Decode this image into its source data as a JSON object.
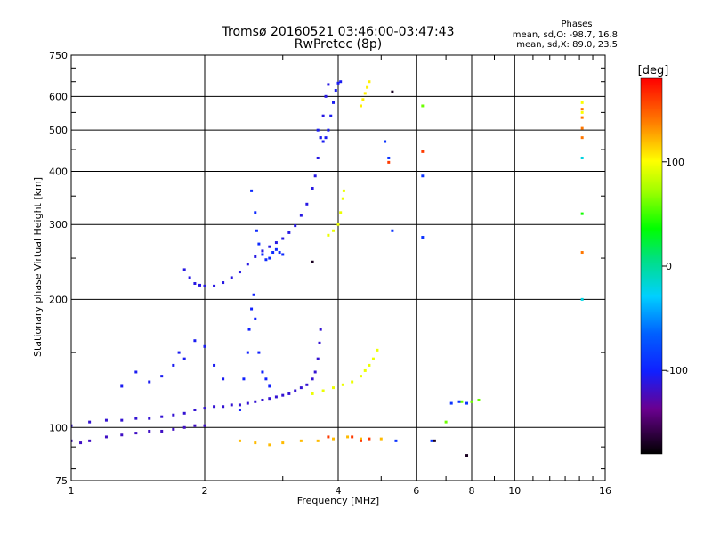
{
  "chart_data": {
    "type": "scatter",
    "title": "Tromsø 20160521 03:46:00-03:47:43",
    "subtitle": "RwPretec (8p)",
    "xlabel": "Frequency [MHz]",
    "ylabel": "Stationary phase Virtual Height [km]",
    "x_scale": "log",
    "y_scale": "log",
    "xlim": [
      1,
      16
    ],
    "ylim": [
      75,
      750
    ],
    "x_ticks": [
      1,
      2,
      4,
      6,
      8,
      10,
      16
    ],
    "y_ticks": [
      75,
      100,
      200,
      300,
      400,
      500,
      600,
      750
    ],
    "x_tick_labels": [
      "1",
      "2",
      "4",
      "6",
      "8",
      "10",
      "16"
    ],
    "y_tick_labels": [
      "75",
      "100",
      "200",
      "300",
      "400",
      "500",
      "600",
      "750"
    ],
    "grid": true,
    "phase_stats": {
      "heading": "Phases",
      "line_o": "mean, sd,O: -98.7, 16.8",
      "line_x": "mean, sd,X:  89.0, 23.5"
    },
    "colorbar": {
      "label": "[deg]",
      "range": [
        -180,
        180
      ],
      "ticks": [
        100,
        0,
        -100
      ],
      "tick_labels": [
        "100",
        "0",
        "-100"
      ]
    },
    "traces": [
      {
        "phase": -110,
        "points": [
          [
            1.8,
            235
          ],
          [
            1.85,
            225
          ],
          [
            1.9,
            218
          ],
          [
            1.95,
            216
          ],
          [
            2.0,
            215
          ],
          [
            2.1,
            215
          ],
          [
            2.2,
            219
          ],
          [
            2.3,
            225
          ],
          [
            2.4,
            232
          ],
          [
            2.5,
            242
          ],
          [
            2.6,
            252
          ],
          [
            2.7,
            260
          ],
          [
            2.8,
            266
          ],
          [
            2.9,
            272
          ],
          [
            3.0,
            278
          ],
          [
            3.1,
            287
          ],
          [
            3.2,
            298
          ],
          [
            3.3,
            315
          ],
          [
            3.4,
            335
          ],
          [
            3.5,
            365
          ],
          [
            3.55,
            390
          ],
          [
            3.6,
            430
          ],
          [
            3.65,
            480
          ],
          [
            3.7,
            540
          ],
          [
            3.75,
            600
          ],
          [
            3.8,
            640
          ]
        ]
      },
      {
        "phase": -95,
        "points": [
          [
            2.55,
            360
          ],
          [
            2.6,
            320
          ],
          [
            2.62,
            290
          ],
          [
            2.65,
            270
          ],
          [
            2.7,
            255
          ],
          [
            2.75,
            248
          ],
          [
            2.8,
            250
          ],
          [
            2.85,
            258
          ],
          [
            2.9,
            262
          ],
          [
            2.95,
            258
          ],
          [
            3.0,
            255
          ]
        ]
      },
      {
        "phase": -105,
        "points": [
          [
            3.6,
            500
          ],
          [
            3.65,
            480
          ],
          [
            3.7,
            470
          ],
          [
            3.75,
            480
          ],
          [
            3.8,
            500
          ],
          [
            3.85,
            540
          ],
          [
            3.9,
            580
          ],
          [
            3.95,
            620
          ],
          [
            4.0,
            645
          ],
          [
            4.05,
            650
          ]
        ]
      },
      {
        "phase": 95,
        "points": [
          [
            3.8,
            283
          ],
          [
            3.9,
            290
          ],
          [
            4.0,
            300
          ],
          [
            4.05,
            320
          ],
          [
            4.1,
            345
          ],
          [
            4.12,
            360
          ]
        ]
      },
      {
        "phase": 105,
        "points": [
          [
            4.5,
            570
          ],
          [
            4.55,
            590
          ],
          [
            4.6,
            610
          ],
          [
            4.65,
            630
          ],
          [
            4.7,
            650
          ]
        ]
      },
      {
        "phase": -120,
        "points": [
          [
            1.0,
            93
          ],
          [
            1.05,
            92
          ],
          [
            1.1,
            93
          ],
          [
            1.2,
            95
          ],
          [
            1.3,
            96
          ],
          [
            1.4,
            97
          ],
          [
            1.5,
            98
          ],
          [
            1.6,
            98
          ],
          [
            1.7,
            99
          ],
          [
            1.8,
            100
          ],
          [
            1.9,
            101
          ],
          [
            2.0,
            101
          ]
        ]
      },
      {
        "phase": -115,
        "points": [
          [
            1.0,
            101
          ],
          [
            1.1,
            103
          ],
          [
            1.2,
            104
          ],
          [
            1.3,
            104
          ],
          [
            1.4,
            105
          ],
          [
            1.5,
            105
          ],
          [
            1.6,
            106
          ],
          [
            1.7,
            107
          ],
          [
            1.8,
            108
          ],
          [
            1.9,
            110
          ],
          [
            2.0,
            111
          ],
          [
            2.1,
            112
          ],
          [
            2.2,
            112
          ],
          [
            2.3,
            113
          ],
          [
            2.4,
            113
          ],
          [
            2.5,
            114
          ],
          [
            2.6,
            115
          ],
          [
            2.7,
            116
          ],
          [
            2.8,
            117
          ],
          [
            2.9,
            118
          ],
          [
            3.0,
            119
          ],
          [
            3.1,
            120
          ],
          [
            3.2,
            122
          ],
          [
            3.3,
            124
          ],
          [
            3.4,
            126
          ],
          [
            3.5,
            130
          ],
          [
            3.55,
            135
          ],
          [
            3.6,
            145
          ],
          [
            3.63,
            158
          ],
          [
            3.65,
            170
          ]
        ]
      },
      {
        "phase": -100,
        "points": [
          [
            2.4,
            110
          ],
          [
            2.45,
            130
          ],
          [
            2.5,
            150
          ],
          [
            2.52,
            170
          ],
          [
            2.55,
            190
          ],
          [
            2.58,
            205
          ],
          [
            2.6,
            180
          ],
          [
            2.65,
            150
          ],
          [
            2.7,
            135
          ],
          [
            2.75,
            130
          ],
          [
            2.8,
            125
          ]
        ]
      },
      {
        "phase": 95,
        "points": [
          [
            3.5,
            120
          ],
          [
            3.7,
            122
          ],
          [
            3.9,
            124
          ],
          [
            4.1,
            126
          ],
          [
            4.3,
            128
          ],
          [
            4.5,
            132
          ],
          [
            4.6,
            136
          ],
          [
            4.7,
            140
          ],
          [
            4.8,
            145
          ],
          [
            4.9,
            152
          ]
        ]
      },
      {
        "phase": -105,
        "points": [
          [
            1.3,
            125
          ],
          [
            1.4,
            135
          ],
          [
            1.5,
            128
          ],
          [
            1.6,
            132
          ],
          [
            1.7,
            140
          ],
          [
            1.75,
            150
          ],
          [
            1.8,
            145
          ],
          [
            1.9,
            160
          ],
          [
            2.0,
            155
          ],
          [
            2.1,
            140
          ],
          [
            2.2,
            130
          ]
        ]
      },
      {
        "phase": 120,
        "points": [
          [
            2.4,
            93
          ],
          [
            2.6,
            92
          ],
          [
            2.8,
            91
          ],
          [
            3.0,
            92
          ],
          [
            3.3,
            93
          ],
          [
            3.6,
            93
          ],
          [
            3.9,
            94
          ],
          [
            4.2,
            95
          ],
          [
            4.5,
            94
          ],
          [
            5.0,
            94
          ]
        ]
      },
      {
        "phase": -90,
        "points": [
          [
            5.2,
            430
          ],
          [
            5.1,
            470
          ],
          [
            5.3,
            290
          ],
          [
            6.2,
            390
          ],
          [
            6.2,
            280
          ],
          [
            5.4,
            93
          ],
          [
            6.5,
            93
          ],
          [
            7.2,
            114
          ],
          [
            7.5,
            115
          ],
          [
            7.8,
            114
          ]
        ]
      },
      {
        "phase": 60,
        "points": [
          [
            6.2,
            570
          ],
          [
            7.0,
            103
          ],
          [
            7.6,
            115
          ],
          [
            8.0,
            115
          ],
          [
            8.3,
            116
          ]
        ]
      },
      {
        "phase": 160,
        "points": [
          [
            6.2,
            445
          ],
          [
            5.2,
            420
          ],
          [
            3.8,
            95
          ],
          [
            4.3,
            95
          ],
          [
            4.5,
            93
          ],
          [
            4.7,
            94
          ]
        ]
      },
      {
        "phase": -170,
        "points": [
          [
            5.3,
            615
          ],
          [
            6.6,
            93
          ],
          [
            7.8,
            86
          ],
          [
            3.5,
            245
          ]
        ]
      },
      {
        "phase": 140,
        "points": [
          [
            14.2,
            560
          ],
          [
            14.2,
            535
          ],
          [
            14.2,
            505
          ],
          [
            14.2,
            480
          ],
          [
            14.2,
            258
          ]
        ]
      },
      {
        "phase": 100,
        "points": [
          [
            14.2,
            580
          ],
          [
            14.2,
            550
          ]
        ]
      },
      {
        "phase": -20,
        "points": [
          [
            14.2,
            430
          ],
          [
            14.2,
            200
          ]
        ]
      },
      {
        "phase": 40,
        "points": [
          [
            14.2,
            318
          ]
        ]
      }
    ]
  }
}
